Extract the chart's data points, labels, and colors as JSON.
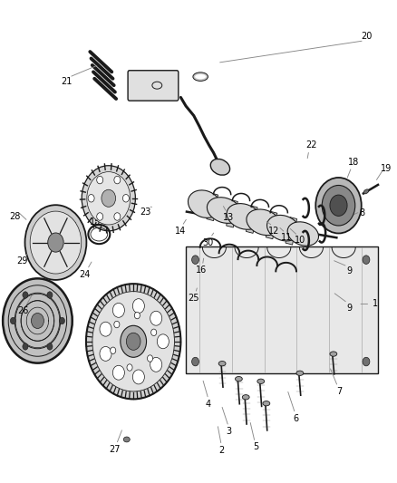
{
  "bg_color": "#ffffff",
  "line_color": "#aaaaaa",
  "dark_color": "#1a1a1a",
  "text_color": "#000000",
  "fig_width": 4.38,
  "fig_height": 5.33,
  "dpi": 100
}
